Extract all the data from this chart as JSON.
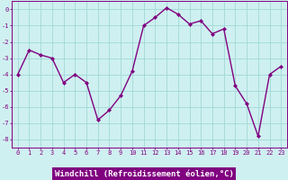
{
  "x": [
    0,
    1,
    2,
    3,
    4,
    5,
    6,
    7,
    8,
    9,
    10,
    11,
    12,
    13,
    14,
    15,
    16,
    17,
    18,
    19,
    20,
    21,
    22,
    23
  ],
  "y": [
    -4.0,
    -2.5,
    -2.8,
    -3.0,
    -4.5,
    -4.0,
    -4.5,
    -6.8,
    -6.2,
    -5.3,
    -3.8,
    -1.0,
    -0.5,
    0.1,
    -0.3,
    -0.9,
    -0.7,
    -1.5,
    -1.2,
    -4.7,
    -5.8,
    -7.8,
    -4.0,
    -3.5
  ],
  "line_color": "#800080",
  "marker": "D",
  "marker_size": 2,
  "line_width": 1.0,
  "background_color": "#cff0f0",
  "grid_color": "#a0d8d8",
  "xlabel": "Windchill (Refroidissement éolien,°C)",
  "xlabel_color": "#ffffff",
  "xlabel_bg": "#800080",
  "ylim": [
    -8.5,
    0.5
  ],
  "xlim": [
    -0.5,
    23.5
  ],
  "yticks": [
    0,
    -1,
    -2,
    -3,
    -4,
    -5,
    -6,
    -7,
    -8
  ],
  "xticks": [
    0,
    1,
    2,
    3,
    4,
    5,
    6,
    7,
    8,
    9,
    10,
    11,
    12,
    13,
    14,
    15,
    16,
    17,
    18,
    19,
    20,
    21,
    22,
    23
  ],
  "tick_color": "#800080",
  "tick_fontsize": 5.0,
  "xlabel_fontsize": 6.5,
  "spine_color": "#800080"
}
